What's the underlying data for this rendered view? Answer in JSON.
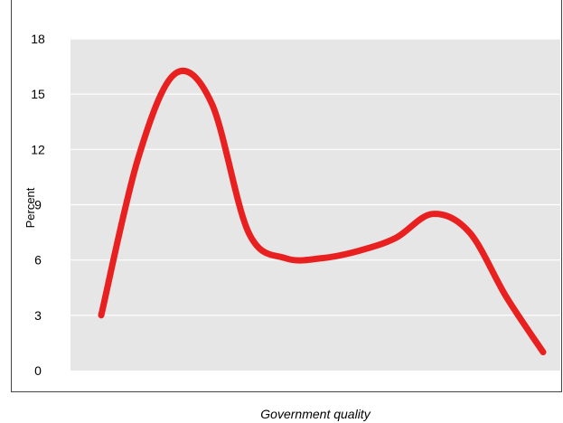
{
  "chart_data": {
    "type": "line",
    "title": "",
    "xlabel": "Government quality",
    "ylabel": "Percent",
    "ylim": [
      0,
      18
    ],
    "yticks": [
      0,
      3,
      6,
      9,
      12,
      15,
      18
    ],
    "grid": true,
    "series": [
      {
        "x": [
          1,
          2,
          3,
          4,
          5,
          6,
          7,
          8,
          9,
          10,
          11,
          12,
          13
        ],
        "values": [
          3.0,
          11.5,
          16.1,
          14.5,
          7.5,
          6.1,
          6.1,
          6.5,
          7.2,
          8.5,
          7.5,
          4.0,
          1.0
        ],
        "color": "#e8201f"
      }
    ]
  },
  "colors": {
    "plot_background": "#e6e6e7",
    "gridline": "#ffffff",
    "line": "#e8201f"
  }
}
